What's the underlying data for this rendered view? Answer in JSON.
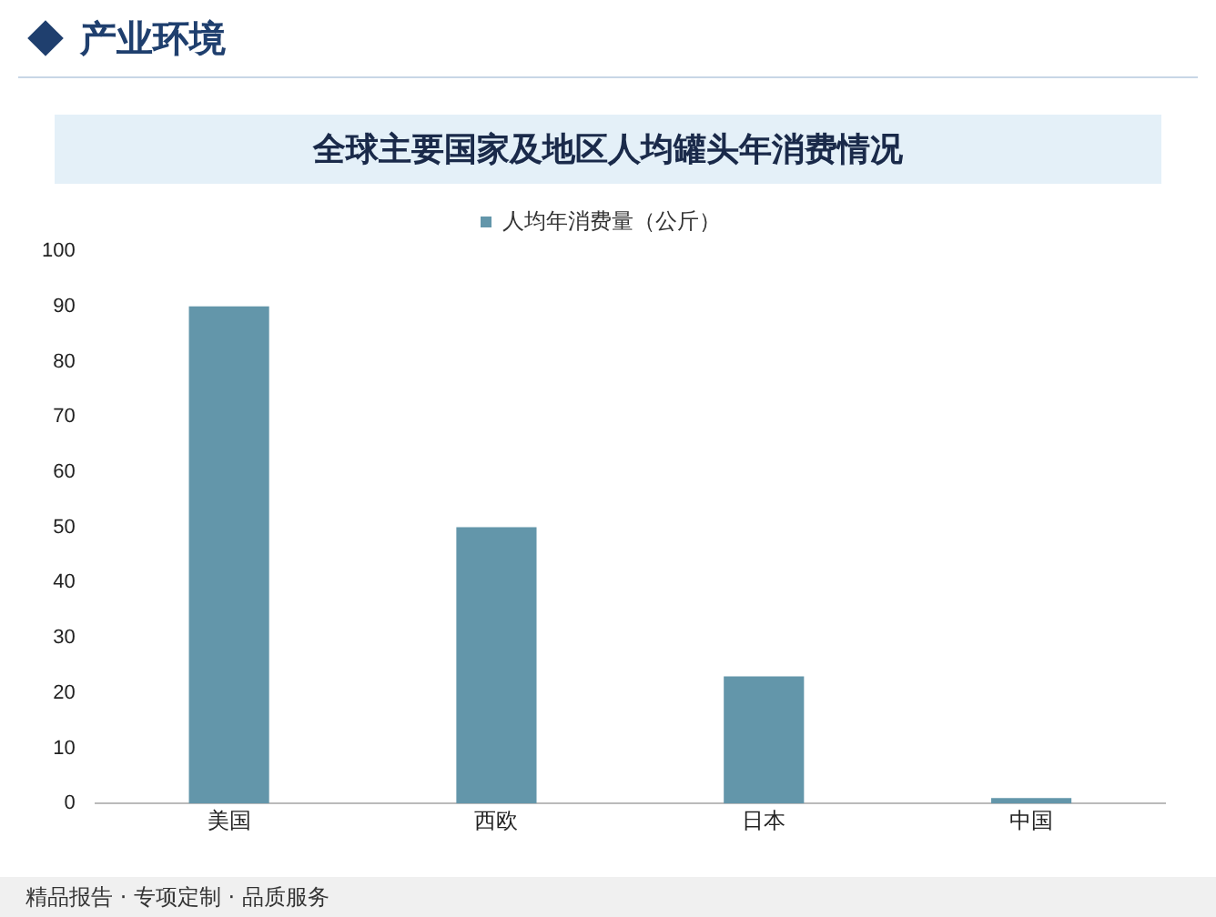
{
  "chart_data": {
    "type": "bar",
    "title": "全球主要国家及地区人均罐头年消费情况",
    "categories": [
      "美国",
      "西欧",
      "日本",
      "中国"
    ],
    "series": [
      {
        "name": "人均年消费量（公斤）",
        "color": "#6396aa",
        "values": [
          90,
          50,
          23,
          1
        ]
      }
    ],
    "ylim": [
      0,
      100
    ],
    "yticks": [
      0,
      10,
      20,
      30,
      40,
      50,
      60,
      70,
      80,
      90,
      100
    ],
    "grid": false,
    "legend": "top",
    "annotations": [
      "产业环境",
      "精品报告 · 专项定制 · 品质服务"
    ]
  }
}
